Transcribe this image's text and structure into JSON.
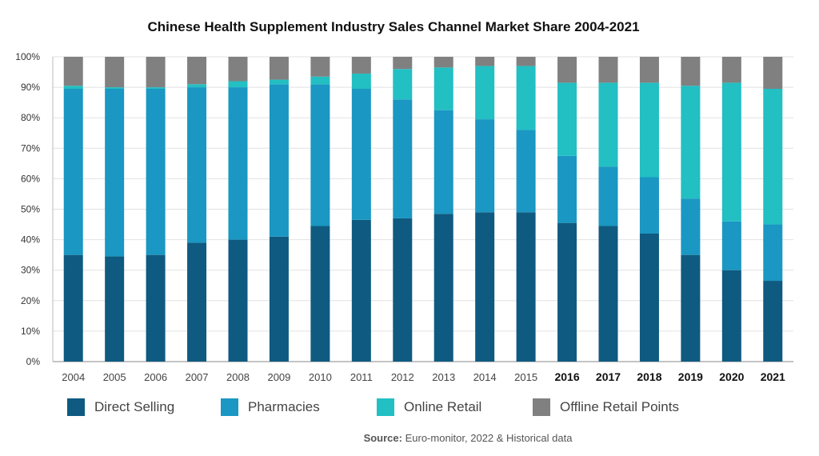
{
  "title": "Chinese Health Supplement Industry Sales Channel Market Share 2004-2021",
  "source_label": "Source:",
  "source_text": "Euro-monitor, 2022 & Historical data",
  "colors": {
    "direct_selling": "#0f5a80",
    "pharmacies": "#1a97c2",
    "online_retail": "#22bfc3",
    "offline_retail": "#808080"
  },
  "chart_data": {
    "type": "bar",
    "stacked": true,
    "title": "Chinese Health Supplement Industry Sales Channel Market Share 2004-2021",
    "categories": [
      "2004",
      "2005",
      "2006",
      "2007",
      "2008",
      "2009",
      "2010",
      "2011",
      "2012",
      "2013",
      "2014",
      "2015",
      "2016",
      "2017",
      "2018",
      "2019",
      "2020",
      "2021"
    ],
    "ylim": [
      0,
      100
    ],
    "yticks": [
      "0%",
      "10%",
      "20%",
      "30%",
      "40%",
      "50%",
      "60%",
      "70%",
      "80%",
      "90%",
      "100%"
    ],
    "grid": true,
    "legend_position": "bottom",
    "series": [
      {
        "name": "Direct Selling",
        "color": "#0f5a80",
        "values": [
          35,
          34.5,
          35,
          39,
          40,
          41,
          44.5,
          46.5,
          47,
          48.5,
          49,
          49,
          45.5,
          44.5,
          42,
          35,
          30,
          26.5
        ]
      },
      {
        "name": "Pharmacies",
        "color": "#1a97c2",
        "values": [
          54.5,
          55,
          54.5,
          51,
          50,
          50,
          46.5,
          43,
          39,
          34,
          30.5,
          27,
          22,
          19.5,
          18.5,
          18.5,
          16,
          18.5
        ]
      },
      {
        "name": "Online Retail",
        "color": "#22bfc3",
        "values": [
          1,
          0.5,
          0.5,
          1,
          2,
          1.5,
          2.5,
          5,
          10,
          14,
          17.5,
          21,
          24,
          27.5,
          31,
          37,
          45.5,
          44.5
        ]
      },
      {
        "name": "Offline Retail Points",
        "color": "#808080",
        "values": [
          9.5,
          10,
          10,
          9,
          8,
          7.5,
          6.5,
          5.5,
          4,
          3.5,
          3,
          3,
          8.5,
          8.5,
          8.5,
          9.5,
          8.5,
          10.5
        ]
      }
    ]
  }
}
